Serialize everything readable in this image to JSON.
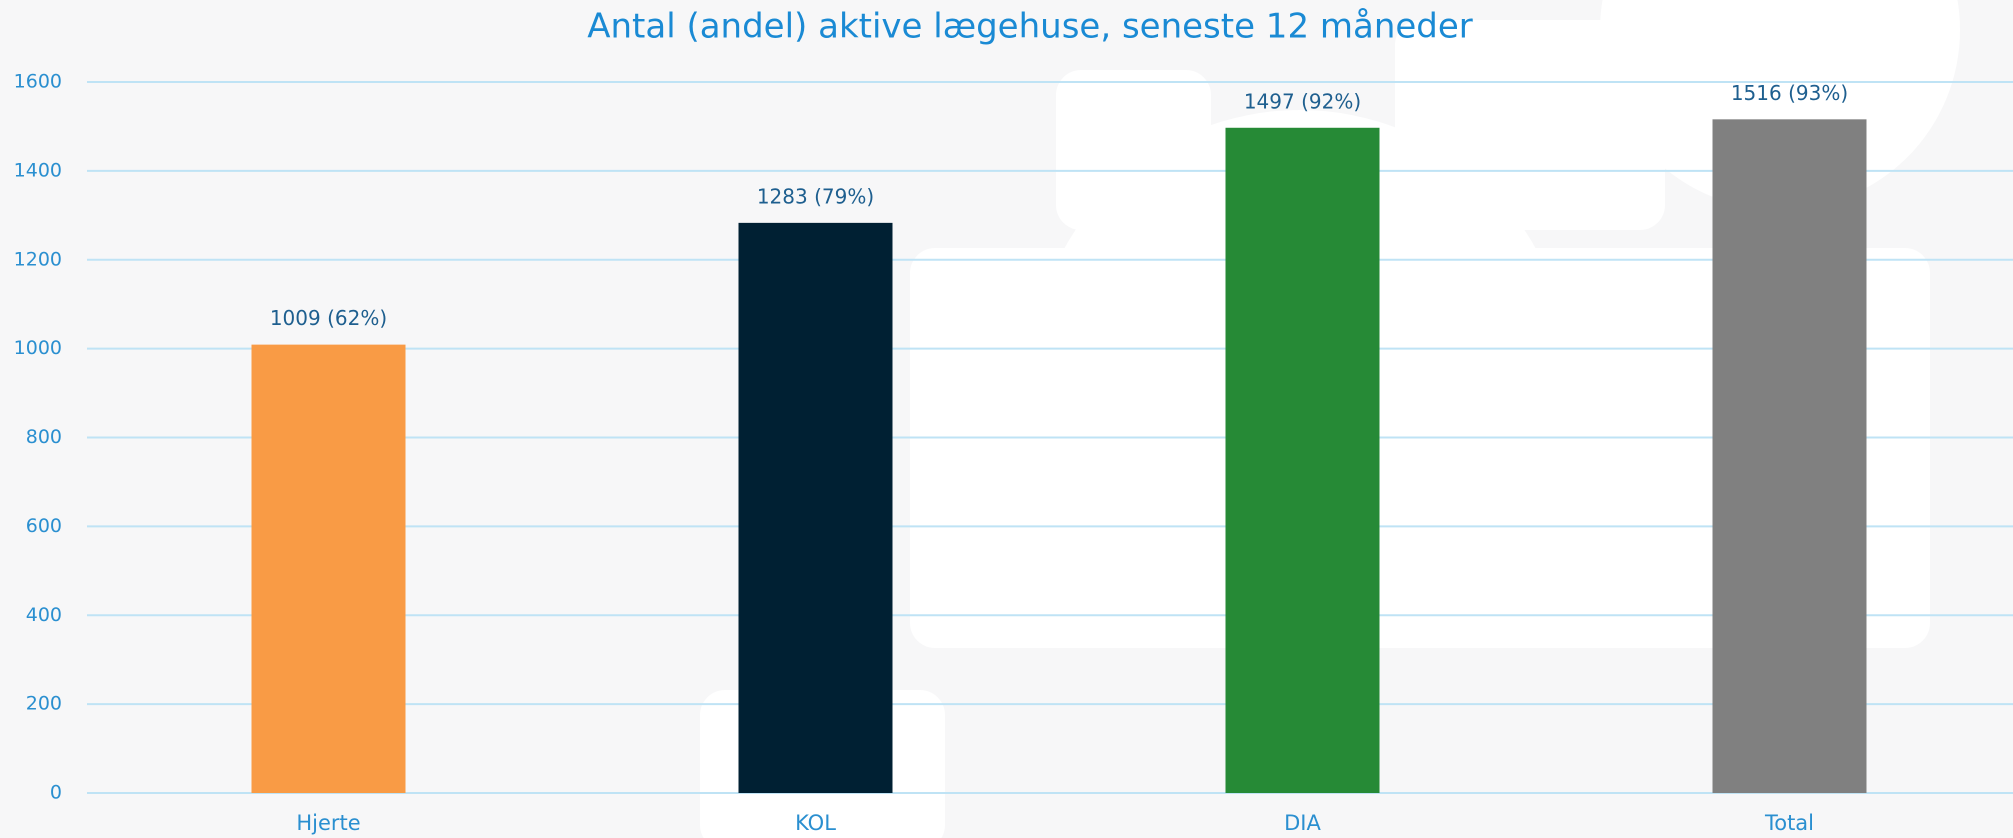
{
  "chart_data": {
    "type": "bar",
    "title": "Antal (andel) aktive lægehuse, seneste 12 måneder",
    "categories": [
      "Hjerte",
      "KOL",
      "DIA",
      "Total"
    ],
    "values": [
      1009,
      1283,
      1497,
      1516
    ],
    "value_labels": [
      "1009 (62%)",
      "1283 (79%)",
      "1497 (92%)",
      "1516 (93%)"
    ],
    "colors": [
      "#f99b45",
      "#002033",
      "#268a36",
      "#808080"
    ],
    "ylim": [
      0,
      1600
    ],
    "yticks": [
      0,
      200,
      400,
      600,
      800,
      1000,
      1200,
      1400,
      1600
    ],
    "grid": true
  }
}
